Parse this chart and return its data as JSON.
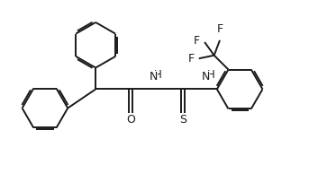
{
  "bg_color": "#ffffff",
  "line_color": "#1a1a1a",
  "line_width": 1.4,
  "font_size": 8.5,
  "fig_width": 3.53,
  "fig_height": 2.13,
  "dpi": 100,
  "xlim": [
    0,
    10
  ],
  "ylim": [
    0,
    6
  ]
}
